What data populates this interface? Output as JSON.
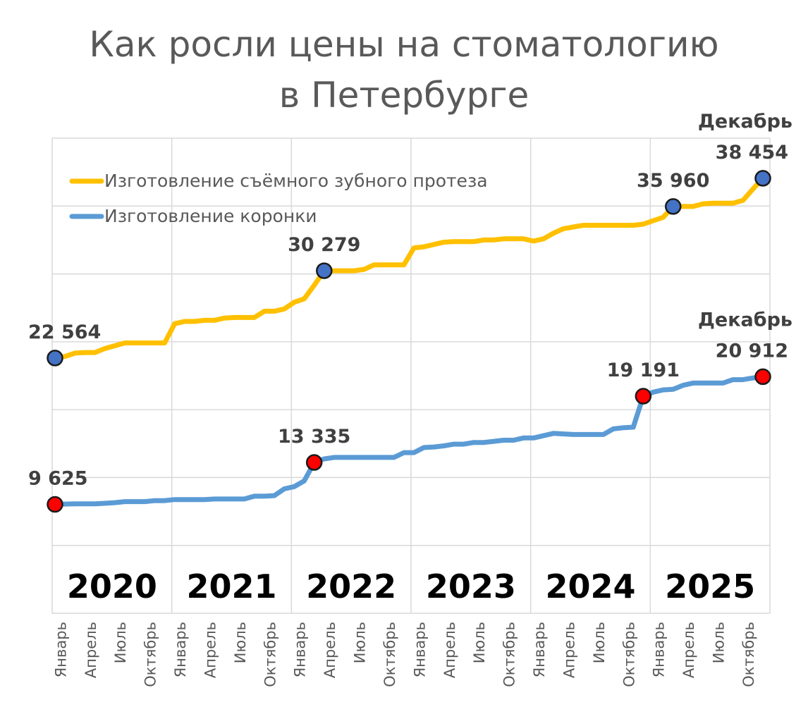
{
  "chart_data": {
    "type": "line",
    "title": [
      "Как росли цены на стоматологию",
      "в Петербурге"
    ],
    "colors": {
      "denture": "#ffc000",
      "crown": "#5b9bd5",
      "marker_denture": "#4472c4",
      "marker_crown": "#ff0000",
      "grid": "#d9d9d9",
      "title": "#595959",
      "labels": "#404040"
    },
    "legend_position": "top-left",
    "grid": true,
    "ylim": [
      0,
      42000
    ],
    "years": [
      "2020",
      "2021",
      "2022",
      "2023",
      "2024",
      "2025"
    ],
    "month_labels": [
      "Январь",
      "Апрель",
      "Июль",
      "Октябрь"
    ],
    "series": [
      {
        "name": "Изготовление съёмного зубного протеза",
        "key": "denture",
        "values": [
          22564,
          22700,
          23000,
          23050,
          23050,
          23400,
          23650,
          23900,
          23900,
          23900,
          23900,
          23900,
          25600,
          25800,
          25800,
          25900,
          25900,
          26100,
          26150,
          26150,
          26150,
          26700,
          26700,
          26900,
          27500,
          27800,
          29000,
          30279,
          30279,
          30279,
          30279,
          30400,
          30800,
          30800,
          30800,
          30800,
          32300,
          32400,
          32600,
          32800,
          32850,
          32850,
          32850,
          33000,
          33000,
          33100,
          33100,
          33100,
          32900,
          33100,
          33600,
          34000,
          34150,
          34300,
          34300,
          34300,
          34300,
          34300,
          34300,
          34400,
          34700,
          35000,
          35960,
          35960,
          35960,
          36200,
          36250,
          36250,
          36250,
          36500,
          37500,
          38454
        ]
      },
      {
        "name": "Изготовление коронки",
        "key": "crown",
        "values": [
          9625,
          9650,
          9680,
          9680,
          9680,
          9720,
          9780,
          9870,
          9870,
          9870,
          9960,
          9960,
          10050,
          10050,
          10050,
          10050,
          10100,
          10100,
          10100,
          10100,
          10350,
          10350,
          10400,
          11000,
          11200,
          11700,
          13335,
          13650,
          13780,
          13780,
          13780,
          13780,
          13780,
          13780,
          13780,
          14200,
          14200,
          14650,
          14700,
          14800,
          14950,
          14950,
          15100,
          15100,
          15200,
          15300,
          15300,
          15500,
          15500,
          15700,
          15900,
          15850,
          15800,
          15800,
          15800,
          15800,
          16300,
          16400,
          16450,
          19191,
          19550,
          19750,
          19800,
          20150,
          20350,
          20350,
          20350,
          20350,
          20650,
          20650,
          20800,
          20912
        ]
      }
    ],
    "data_labels": [
      {
        "series": "denture",
        "index": 0,
        "text": "22 564"
      },
      {
        "series": "denture",
        "index": 27,
        "text": "30 279"
      },
      {
        "series": "denture",
        "index": 62,
        "text": "35 960"
      },
      {
        "series": "denture",
        "index": 71,
        "text": "38 454",
        "prefix": "Декабрь"
      },
      {
        "series": "crown",
        "index": 0,
        "text": "9 625"
      },
      {
        "series": "crown",
        "index": 26,
        "text": "13 335"
      },
      {
        "series": "crown",
        "index": 59,
        "text": "19 191"
      },
      {
        "series": "crown",
        "index": 71,
        "text": "20 912",
        "prefix": "Декабрь"
      }
    ]
  }
}
